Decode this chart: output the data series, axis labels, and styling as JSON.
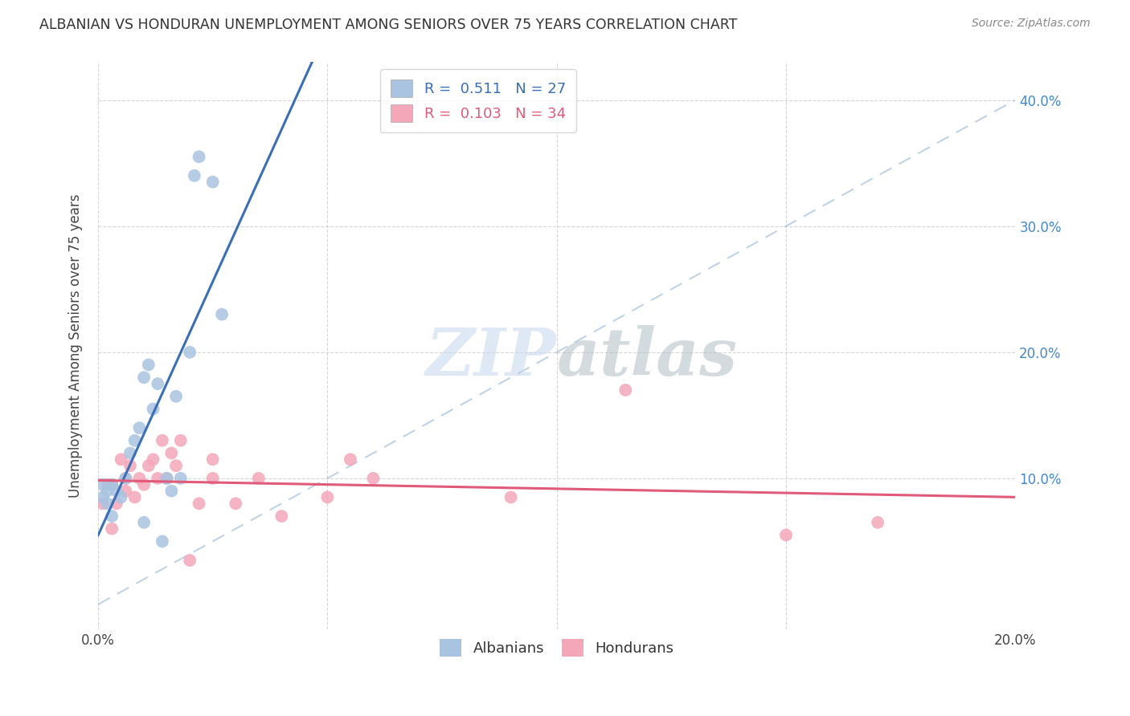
{
  "title": "ALBANIAN VS HONDURAN UNEMPLOYMENT AMONG SENIORS OVER 75 YEARS CORRELATION CHART",
  "source": "Source: ZipAtlas.com",
  "ylabel": "Unemployment Among Seniors over 75 years",
  "xlim": [
    0,
    0.2
  ],
  "ylim": [
    -0.02,
    0.43
  ],
  "albanian_color": "#a8c4e0",
  "honduran_color": "#f4a7b9",
  "albanian_line_color": "#3b6fb5",
  "honduran_line_color": "#e05a7a",
  "diag_line_color": "#b0c8e0",
  "R_albanian": 0.511,
  "N_albanian": 27,
  "R_honduran": 0.103,
  "N_honduran": 34,
  "albanian_x": [
    0.001,
    0.001,
    0.002,
    0.002,
    0.003,
    0.003,
    0.004,
    0.005,
    0.006,
    0.007,
    0.008,
    0.009,
    0.01,
    0.01,
    0.011,
    0.012,
    0.013,
    0.014,
    0.015,
    0.016,
    0.017,
    0.018,
    0.02,
    0.021,
    0.022,
    0.025,
    0.027
  ],
  "albanian_y": [
    0.095,
    0.085,
    0.09,
    0.08,
    0.095,
    0.07,
    0.09,
    0.085,
    0.1,
    0.12,
    0.13,
    0.14,
    0.18,
    0.065,
    0.19,
    0.155,
    0.175,
    0.05,
    0.1,
    0.09,
    0.165,
    0.1,
    0.2,
    0.34,
    0.355,
    0.335,
    0.23
  ],
  "honduran_x": [
    0.001,
    0.002,
    0.003,
    0.003,
    0.004,
    0.005,
    0.006,
    0.006,
    0.007,
    0.008,
    0.009,
    0.01,
    0.011,
    0.012,
    0.013,
    0.014,
    0.015,
    0.016,
    0.017,
    0.018,
    0.02,
    0.022,
    0.025,
    0.025,
    0.03,
    0.035,
    0.04,
    0.05,
    0.055,
    0.06,
    0.09,
    0.115,
    0.15,
    0.17
  ],
  "honduran_y": [
    0.08,
    0.095,
    0.095,
    0.06,
    0.08,
    0.115,
    0.1,
    0.09,
    0.11,
    0.085,
    0.1,
    0.095,
    0.11,
    0.115,
    0.1,
    0.13,
    0.1,
    0.12,
    0.11,
    0.13,
    0.035,
    0.08,
    0.115,
    0.1,
    0.08,
    0.1,
    0.07,
    0.085,
    0.115,
    0.1,
    0.085,
    0.17,
    0.055,
    0.065
  ],
  "watermark": "ZIPatlas",
  "figsize": [
    14.06,
    8.92
  ],
  "dpi": 100
}
